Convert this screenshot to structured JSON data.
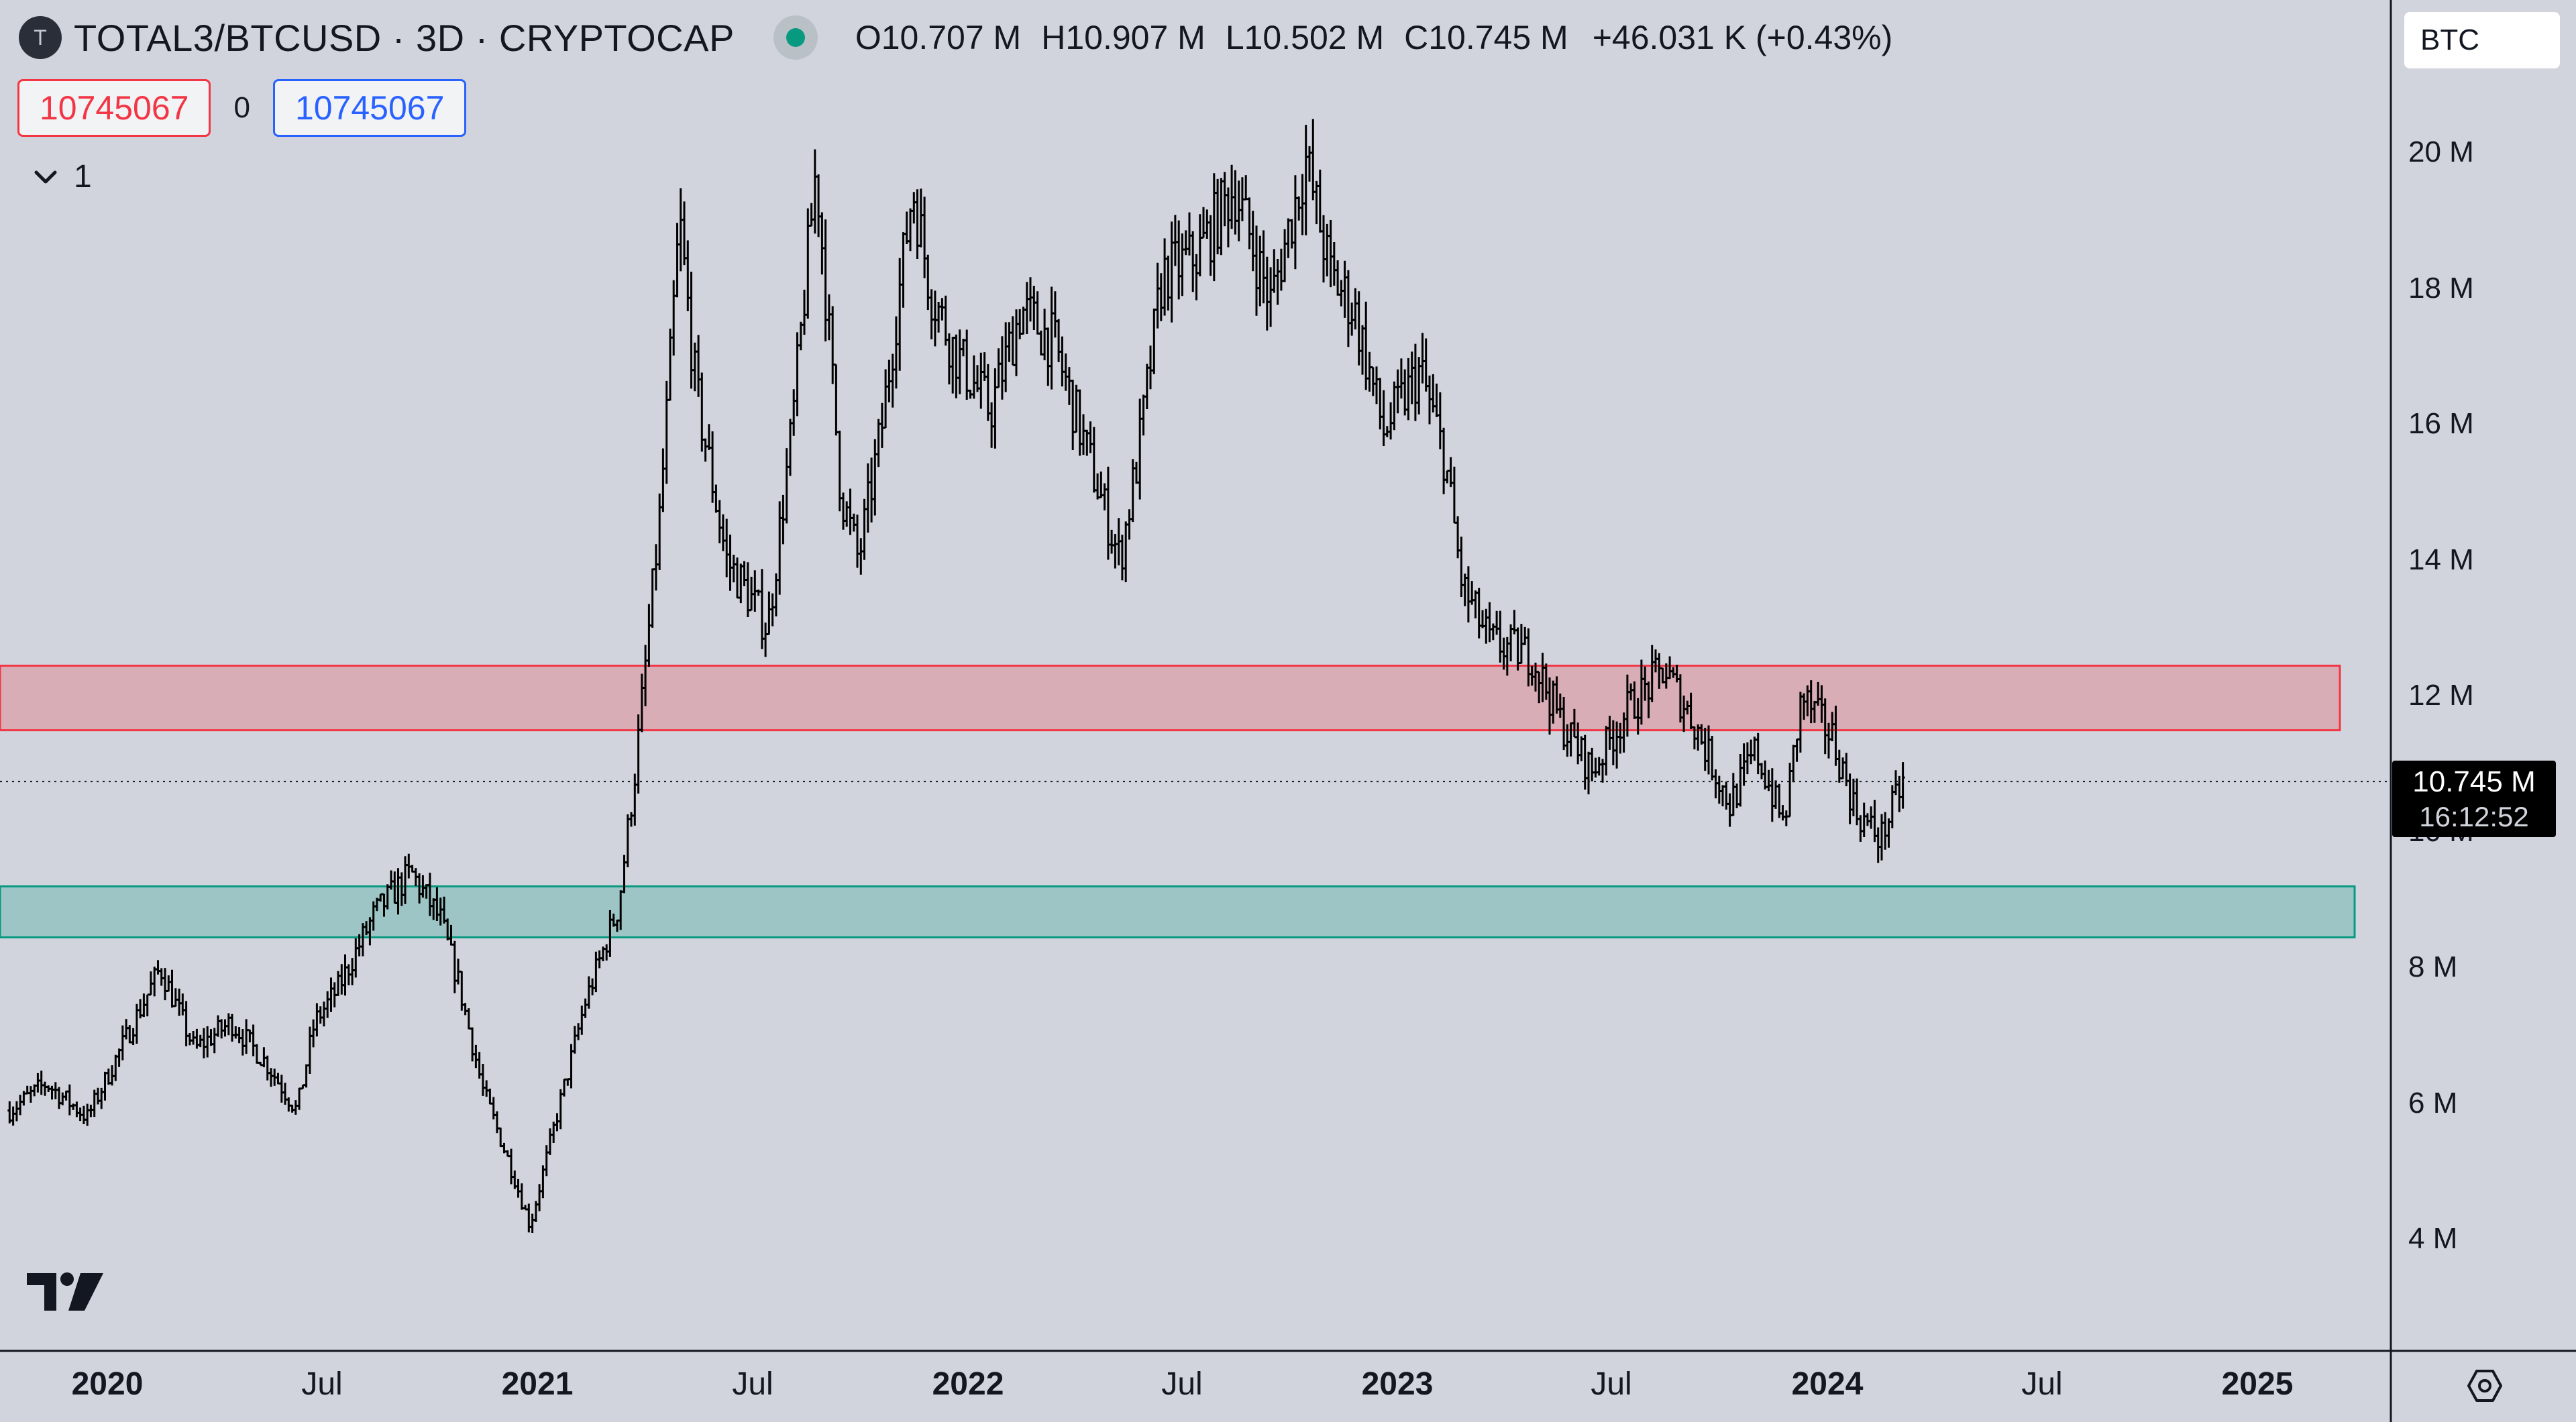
{
  "symbol": {
    "badge_letter": "T",
    "title": "TOTAL3/BTCUSD · 3D · CRYPTOCAP",
    "market_status_icon": "market-open-dot",
    "ohlc": {
      "o_label": "O",
      "o_value": "10.707 M",
      "h_label": "H",
      "h_value": "10.907 M",
      "l_label": "L",
      "l_value": "10.502 M",
      "c_label": "C",
      "c_value": "10.745 M",
      "change": "+46.031 K (+0.43%)"
    }
  },
  "trade": {
    "sell_qty": "10745067",
    "spread": "0",
    "buy_qty": "10745067"
  },
  "indicators": {
    "collapse_icon": "chevron-down-icon",
    "count": "1"
  },
  "currency_input": {
    "value": "BTC"
  },
  "price_axis": {
    "labels": [
      "20 M",
      "18 M",
      "16 M",
      "14 M",
      "12 M",
      "10 M",
      "8 M",
      "6 M",
      "4 M"
    ],
    "last_price": "10.745 M",
    "countdown": "16:12:52"
  },
  "time_axis": {
    "labels": [
      {
        "text": "2020",
        "major": true
      },
      {
        "text": "Jul",
        "major": false
      },
      {
        "text": "2021",
        "major": true
      },
      {
        "text": "Jul",
        "major": false
      },
      {
        "text": "2022",
        "major": true
      },
      {
        "text": "Jul",
        "major": false
      },
      {
        "text": "2023",
        "major": true
      },
      {
        "text": "Jul",
        "major": false
      },
      {
        "text": "2024",
        "major": true
      },
      {
        "text": "Jul",
        "major": false
      },
      {
        "text": "2025",
        "major": true
      }
    ]
  },
  "colors": {
    "background": "#d1d4dc",
    "bars": "#000000",
    "resistance_fill": "#f23645",
    "support_fill": "#089981",
    "market_dot": "#089981"
  },
  "chart_data": {
    "type": "ohlc",
    "title": "TOTAL3/BTCUSD · 3D · CRYPTOCAP",
    "xlabel": "",
    "ylabel": "",
    "currency": "BTC",
    "ylim": [
      3000000,
      21500000
    ],
    "yticks": [
      4000000,
      6000000,
      8000000,
      10000000,
      12000000,
      14000000,
      16000000,
      18000000,
      20000000
    ],
    "xlim": [
      "2019-10-10",
      "2025-04-20"
    ],
    "series": [
      {
        "interval": "3D",
        "points": [
          [
            "2019-10-10",
            5.9
          ],
          [
            "2019-11-10",
            6.3
          ],
          [
            "2019-12-15",
            5.8
          ],
          [
            "2020-01-15",
            6.9
          ],
          [
            "2020-02-15",
            8.0
          ],
          [
            "2020-03-15",
            6.8
          ],
          [
            "2020-04-15",
            7.2
          ],
          [
            "2020-05-15",
            6.6
          ],
          [
            "2020-06-10",
            5.9
          ],
          [
            "2020-06-25",
            7.2
          ],
          [
            "2020-07-15",
            7.7
          ],
          [
            "2020-08-15",
            8.8
          ],
          [
            "2020-09-15",
            9.4
          ],
          [
            "2020-10-10",
            8.7
          ],
          [
            "2020-10-25",
            7.8
          ],
          [
            "2020-11-15",
            6.2
          ],
          [
            "2020-12-10",
            5.0
          ],
          [
            "2020-12-25",
            4.2
          ],
          [
            "2021-01-15",
            5.7
          ],
          [
            "2021-02-10",
            7.5
          ],
          [
            "2021-03-10",
            8.9
          ],
          [
            "2021-03-25",
            11.0
          ],
          [
            "2021-04-15",
            14.8
          ],
          [
            "2021-05-01",
            19.0
          ],
          [
            "2021-05-15",
            16.5
          ],
          [
            "2021-06-10",
            14.0
          ],
          [
            "2021-06-25",
            13.6
          ],
          [
            "2021-07-15",
            13.0
          ],
          [
            "2021-08-05",
            16.0
          ],
          [
            "2021-08-25",
            19.8
          ],
          [
            "2021-09-15",
            15.0
          ],
          [
            "2021-09-30",
            14.0
          ],
          [
            "2021-10-20",
            16.0
          ],
          [
            "2021-11-15",
            19.5
          ],
          [
            "2021-11-30",
            18.0
          ],
          [
            "2021-12-20",
            17.1
          ],
          [
            "2022-01-20",
            16.2
          ],
          [
            "2022-02-15",
            17.7
          ],
          [
            "2022-03-15",
            17.2
          ],
          [
            "2022-04-05",
            16.0
          ],
          [
            "2022-05-10",
            14.0
          ],
          [
            "2022-05-25",
            15.5
          ],
          [
            "2022-06-15",
            18.2
          ],
          [
            "2022-07-15",
            18.5
          ],
          [
            "2022-08-15",
            19.5
          ],
          [
            "2022-09-15",
            17.8
          ],
          [
            "2022-10-15",
            19.9
          ],
          [
            "2022-11-05",
            18.2
          ],
          [
            "2022-11-25",
            17.7
          ],
          [
            "2022-12-20",
            15.9
          ],
          [
            "2023-01-20",
            16.8
          ],
          [
            "2023-02-10",
            15.5
          ],
          [
            "2023-02-25",
            13.6
          ],
          [
            "2023-03-20",
            12.8
          ],
          [
            "2023-04-25",
            12.6
          ],
          [
            "2023-05-20",
            11.6
          ],
          [
            "2023-06-15",
            10.9
          ],
          [
            "2023-07-15",
            11.8
          ],
          [
            "2023-08-15",
            12.4
          ],
          [
            "2023-09-10",
            11.6
          ],
          [
            "2023-10-10",
            10.4
          ],
          [
            "2023-11-01",
            11.2
          ],
          [
            "2023-11-25",
            10.1
          ],
          [
            "2023-12-10",
            12.0
          ],
          [
            "2024-01-05",
            11.4
          ],
          [
            "2024-01-25",
            10.3
          ],
          [
            "2024-02-15",
            9.9
          ],
          [
            "2024-03-05",
            10.745
          ]
        ]
      }
    ],
    "zones": [
      {
        "name": "resistance",
        "from": 11500000,
        "to": 12450000,
        "color": "#f23645"
      },
      {
        "name": "support",
        "from": 8450000,
        "to": 9200000,
        "color": "#089981"
      }
    ],
    "last": {
      "open": "10.707 M",
      "high": "10.907 M",
      "low": "10.502 M",
      "close": "10.745 M",
      "value": 10745000
    },
    "grid": false,
    "legend": "top-left"
  }
}
